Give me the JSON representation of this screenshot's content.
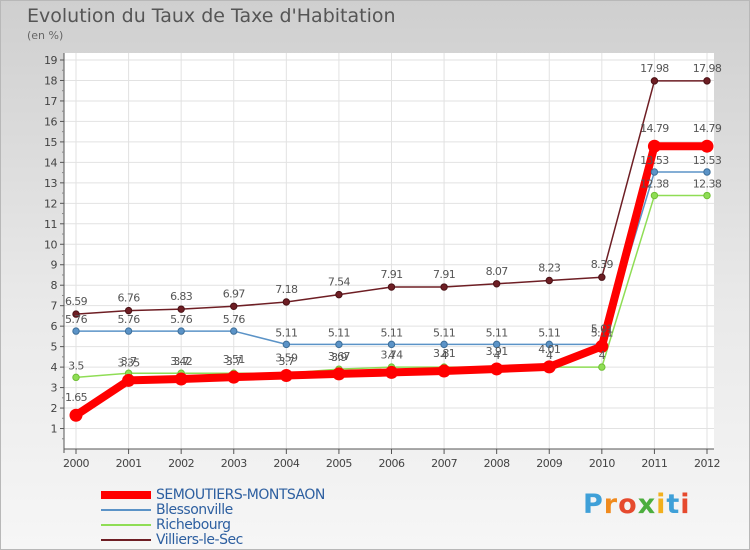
{
  "title": "Evolution du Taux de Taxe d'Habitation",
  "subtitle": "(en %)",
  "logo_text": "Proxiti",
  "chart_data": {
    "type": "line",
    "x": [
      2000,
      2001,
      2002,
      2003,
      2004,
      2005,
      2006,
      2007,
      2008,
      2009,
      2010,
      2011,
      2012
    ],
    "ylim": [
      0,
      19
    ],
    "yticks": [
      1,
      2,
      3,
      4,
      5,
      6,
      7,
      8,
      9,
      10,
      11,
      12,
      13,
      14,
      15,
      16,
      17,
      18,
      19
    ],
    "grid": true,
    "legend_position": "bottom-left",
    "series": [
      {
        "name": "SEMOUTIERS-MONTSAON",
        "color": "#ff0000",
        "values": [
          1.65,
          3.35,
          3.42,
          3.51,
          3.59,
          3.67,
          3.74,
          3.81,
          3.91,
          4.01,
          5.01,
          14.79,
          14.79
        ]
      },
      {
        "name": "Blessonville",
        "color": "#5b93c7",
        "values": [
          5.76,
          5.76,
          5.76,
          5.76,
          5.11,
          5.11,
          5.11,
          5.11,
          5.11,
          5.11,
          5.11,
          13.53,
          13.53
        ]
      },
      {
        "name": "Richebourg",
        "color": "#8fdd55",
        "values": [
          3.5,
          3.7,
          3.7,
          3.7,
          3.7,
          3.9,
          4,
          4,
          4,
          4,
          4,
          12.38,
          12.38
        ]
      },
      {
        "name": "Villiers-le-Sec",
        "color": "#6e1e24",
        "values": [
          6.59,
          6.76,
          6.83,
          6.97,
          7.18,
          7.54,
          7.91,
          7.91,
          8.07,
          8.23,
          8.39,
          17.98,
          17.98
        ]
      }
    ]
  }
}
